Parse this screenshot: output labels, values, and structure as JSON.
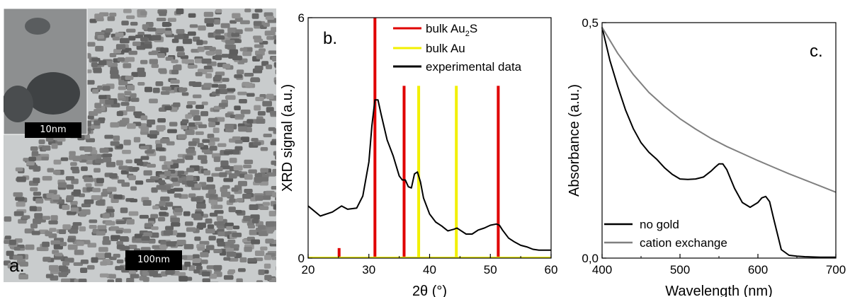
{
  "panel_a": {
    "label": "a.",
    "scale_main": "100nm",
    "scale_inset": "10nm"
  },
  "chart_data": [
    {
      "type": "line",
      "panel_label": "b.",
      "xlabel": "2θ (°)",
      "ylabel": "XRD signal (a.u.)",
      "xlim": [
        20,
        60
      ],
      "ylim": [
        0,
        6
      ],
      "xticks": [
        20,
        30,
        40,
        50,
        60
      ],
      "yticks": [
        0,
        6
      ],
      "legend_position": "top-right",
      "legend": [
        {
          "label": "bulk Au",
          "sub": "2",
          "label_tail": "S",
          "color": "#e00000"
        },
        {
          "label": "bulk Au",
          "sub": "",
          "label_tail": "",
          "color": "#f2f000"
        },
        {
          "label": "experimental data",
          "sub": "",
          "label_tail": "",
          "color": "#000000"
        }
      ],
      "reference_peaks": [
        {
          "series": "bulk Au2S",
          "color": "#e00000",
          "peaks": [
            [
              25.1,
              0.25
            ],
            [
              31.0,
              6.0
            ],
            [
              35.8,
              4.3
            ],
            [
              51.3,
              4.3
            ]
          ]
        },
        {
          "series": "bulk Au",
          "color": "#f2f000",
          "peaks": [
            [
              38.2,
              4.3
            ],
            [
              44.4,
              4.3
            ]
          ]
        }
      ],
      "series": [
        {
          "name": "experimental data",
          "color": "#000000",
          "x": [
            20,
            22,
            24,
            25.5,
            26.5,
            28,
            29,
            30,
            30.5,
            31,
            31.5,
            32,
            33,
            34,
            35,
            35.5,
            36,
            36.5,
            37,
            37.5,
            38,
            38.5,
            39,
            40,
            41,
            42,
            43,
            44,
            44.5,
            45,
            46,
            47,
            48,
            49,
            50,
            51,
            51.5,
            52,
            53,
            54,
            55,
            56,
            57,
            58,
            59,
            60
          ],
          "y": [
            1.3,
            1.05,
            1.15,
            1.3,
            1.22,
            1.25,
            1.55,
            2.4,
            3.3,
            3.95,
            3.95,
            3.6,
            2.95,
            2.55,
            2.05,
            1.95,
            1.95,
            1.78,
            1.75,
            2.1,
            2.15,
            1.9,
            1.5,
            1.1,
            0.9,
            0.8,
            0.68,
            0.72,
            0.75,
            0.7,
            0.6,
            0.6,
            0.7,
            0.75,
            0.82,
            0.85,
            0.82,
            0.7,
            0.5,
            0.4,
            0.32,
            0.28,
            0.22,
            0.2,
            0.2,
            0.2
          ]
        }
      ]
    },
    {
      "type": "line",
      "panel_label": "c.",
      "xlabel": "Wavelength (nm)",
      "ylabel": "Absorbance (a.u.)",
      "xlim": [
        400,
        700
      ],
      "ylim": [
        0,
        0.5
      ],
      "xticks": [
        400,
        500,
        600,
        700
      ],
      "xtick_labels": [
        "400",
        "500",
        "600",
        "700"
      ],
      "yticks": [
        0,
        0.5
      ],
      "ytick_labels": [
        "0,0",
        "0,5"
      ],
      "legend_position": "bottom-left",
      "series": [
        {
          "name": "no gold",
          "color": "#000000",
          "x": [
            400,
            410,
            420,
            430,
            440,
            450,
            460,
            470,
            480,
            490,
            500,
            510,
            520,
            530,
            540,
            545,
            550,
            555,
            560,
            570,
            580,
            590,
            600,
            605,
            610,
            615,
            620,
            630,
            640,
            650,
            660,
            680,
            700
          ],
          "y": [
            0.49,
            0.42,
            0.365,
            0.315,
            0.275,
            0.245,
            0.225,
            0.21,
            0.192,
            0.178,
            0.168,
            0.167,
            0.168,
            0.172,
            0.185,
            0.193,
            0.2,
            0.2,
            0.188,
            0.148,
            0.118,
            0.108,
            0.118,
            0.128,
            0.131,
            0.12,
            0.085,
            0.018,
            0.006,
            0.004,
            0.003,
            0.002,
            0.002
          ]
        },
        {
          "name": "cation exchange",
          "color": "#808080",
          "x": [
            400,
            420,
            440,
            460,
            480,
            500,
            520,
            540,
            560,
            580,
            600,
            620,
            640,
            660,
            680,
            700
          ],
          "y": [
            0.49,
            0.435,
            0.39,
            0.352,
            0.322,
            0.296,
            0.274,
            0.254,
            0.237,
            0.222,
            0.207,
            0.193,
            0.179,
            0.166,
            0.153,
            0.14
          ]
        }
      ]
    }
  ]
}
